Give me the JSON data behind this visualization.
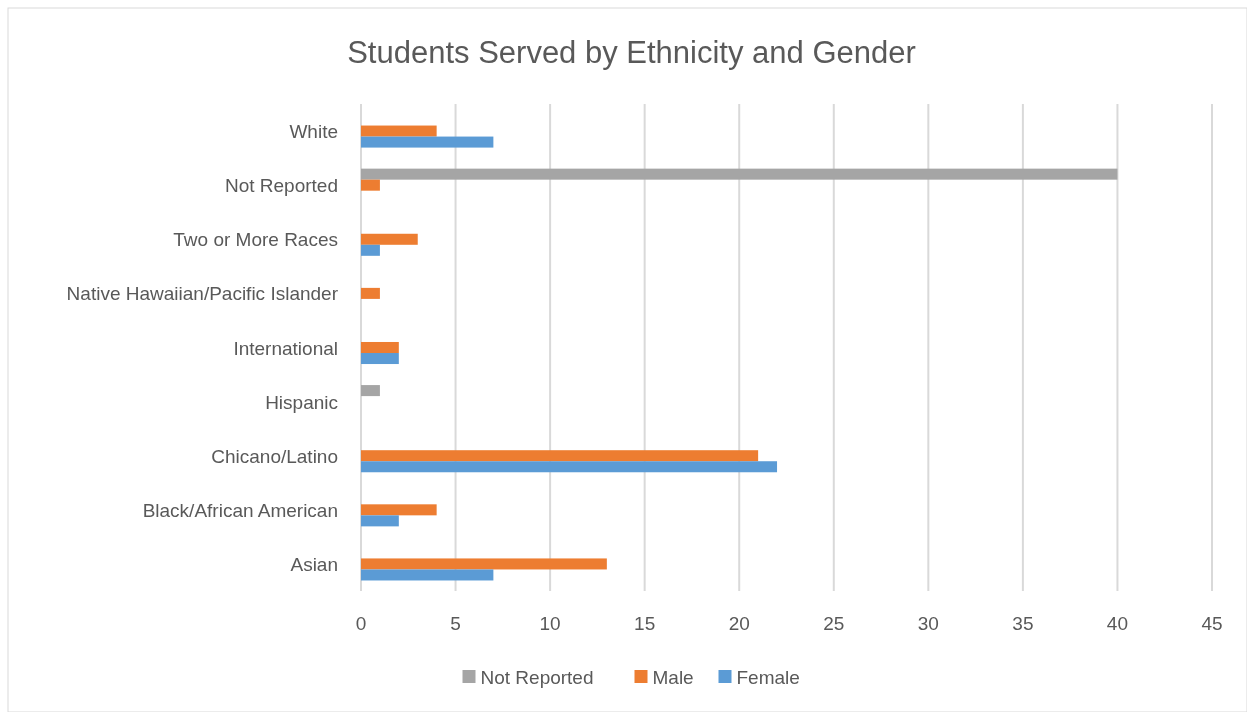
{
  "chart_data": {
    "type": "bar",
    "orientation": "horizontal",
    "title": "Students Served by Ethnicity and Gender",
    "categories": [
      "White",
      "Not Reported",
      "Two or More Races",
      "Native Hawaiian/Pacific Islander",
      "International",
      "Hispanic",
      "Chicano/Latino",
      "Black/African American",
      "Asian"
    ],
    "series": [
      {
        "name": "Not Reported",
        "color": "#a5a5a5",
        "values": [
          null,
          40,
          null,
          null,
          null,
          1,
          null,
          null,
          null
        ]
      },
      {
        "name": "Male",
        "color": "#ed7d31",
        "values": [
          4,
          1,
          3,
          1,
          2,
          null,
          21,
          4,
          13
        ]
      },
      {
        "name": "Female",
        "color": "#5b9bd5",
        "values": [
          7,
          null,
          1,
          null,
          2,
          null,
          22,
          2,
          7
        ]
      }
    ],
    "xlim": [
      0,
      45
    ],
    "xticks": [
      0,
      5,
      10,
      15,
      20,
      25,
      30,
      35,
      40,
      45
    ],
    "grid": "x",
    "legend": "bottom"
  }
}
